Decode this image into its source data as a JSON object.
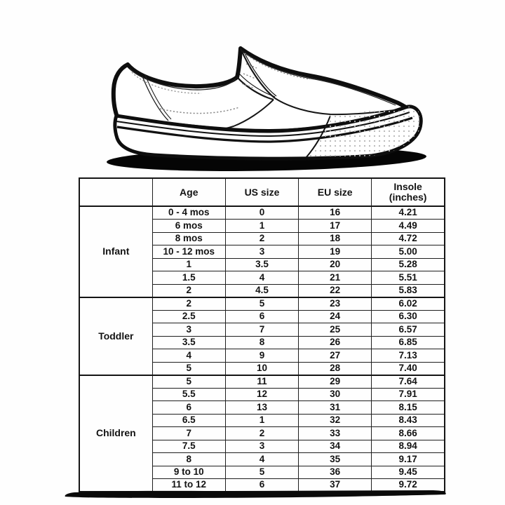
{
  "header": {
    "age": "Age",
    "us": "US size",
    "eu": "EU size",
    "insole_line1": "Insole",
    "insole_line2": "(inches)"
  },
  "illustration": {
    "subject": "slip-on-shoe-line-drawing",
    "outline_color": "#0e0e0e",
    "fill_color": "#ffffff",
    "shadow_color": "#050505",
    "stitch_color": "#8a8a8a"
  },
  "chart_data": {
    "type": "table",
    "title": "",
    "columns": [
      "",
      "Age",
      "US size",
      "EU size",
      "Insole (inches)"
    ],
    "groups": [
      {
        "label": "Infant",
        "rows": [
          [
            "0 - 4 mos",
            "0",
            "16",
            "4.21"
          ],
          [
            "6 mos",
            "1",
            "17",
            "4.49"
          ],
          [
            "8 mos",
            "2",
            "18",
            "4.72"
          ],
          [
            "10 - 12 mos",
            "3",
            "19",
            "5.00"
          ],
          [
            "1",
            "3.5",
            "20",
            "5.28"
          ],
          [
            "1.5",
            "4",
            "21",
            "5.51"
          ],
          [
            "2",
            "4.5",
            "22",
            "5.83"
          ]
        ]
      },
      {
        "label": "Toddler",
        "rows": [
          [
            "2",
            "5",
            "23",
            "6.02"
          ],
          [
            "2.5",
            "6",
            "24",
            "6.30"
          ],
          [
            "3",
            "7",
            "25",
            "6.57"
          ],
          [
            "3.5",
            "8",
            "26",
            "6.85"
          ],
          [
            "4",
            "9",
            "27",
            "7.13"
          ],
          [
            "5",
            "10",
            "28",
            "7.40"
          ]
        ]
      },
      {
        "label": "Children",
        "rows": [
          [
            "5",
            "11",
            "29",
            "7.64"
          ],
          [
            "5.5",
            "12",
            "30",
            "7.91"
          ],
          [
            "6",
            "13",
            "31",
            "8.15"
          ],
          [
            "6.5",
            "1",
            "32",
            "8.43"
          ],
          [
            "7",
            "2",
            "33",
            "8.66"
          ],
          [
            "7.5",
            "3",
            "34",
            "8.94"
          ],
          [
            "8",
            "4",
            "35",
            "9.17"
          ],
          [
            "9 to 10",
            "5",
            "36",
            "9.45"
          ],
          [
            "11 to 12",
            "6",
            "37",
            "9.72"
          ]
        ]
      }
    ]
  }
}
